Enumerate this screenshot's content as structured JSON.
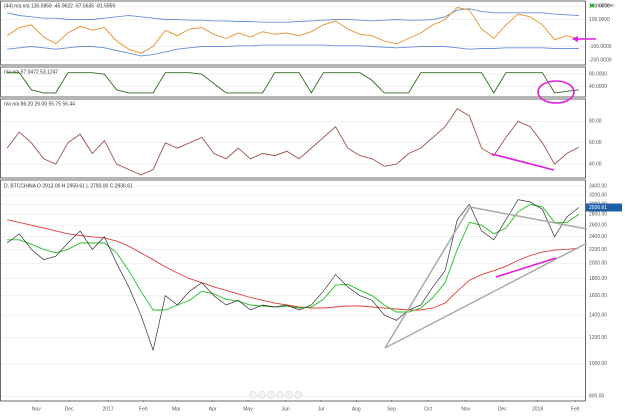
{
  "chart_data": [
    {
      "type": "line",
      "name": "cci",
      "header": "(44)  n/a  n/a  130.5959  -45.9622  -57.5635  -81.5959",
      "legend": "realtime",
      "ylim": [
        -230,
        230
      ],
      "yticks": [
        {
          "value": 200,
          "label": "200.0000"
        },
        {
          "value": 100,
          "label": "100.0000"
        },
        {
          "value": -100,
          "label": "-100.0000"
        },
        {
          "value": -200,
          "label": "-200.0000"
        }
      ],
      "series": [
        {
          "name": "upper",
          "color": "#6a8fd8",
          "values": [
            150,
            130,
            120,
            110,
            110,
            100,
            100,
            100,
            110,
            120,
            130,
            120,
            110,
            100,
            100,
            95,
            95,
            90,
            90,
            85,
            85,
            80,
            80,
            80,
            85,
            90,
            95,
            100,
            100,
            95,
            90,
            95,
            100,
            95,
            95,
            100,
            120,
            170,
            180,
            160,
            150,
            150,
            150,
            150,
            150,
            140,
            135,
            130
          ]
        },
        {
          "name": "lower",
          "color": "#6a8fd8",
          "values": [
            -120,
            -110,
            -100,
            -110,
            -120,
            -110,
            -100,
            -100,
            -110,
            -130,
            -150,
            -170,
            -160,
            -140,
            -120,
            -110,
            -100,
            -100,
            -100,
            -95,
            -95,
            -90,
            -90,
            -90,
            -90,
            -90,
            -90,
            -95,
            -95,
            -95,
            -100,
            -105,
            -110,
            -105,
            -100,
            -100,
            -100,
            -110,
            -120,
            -115,
            -115,
            -110,
            -110,
            -110,
            -110,
            -115,
            -115,
            -115
          ]
        },
        {
          "name": "cci",
          "color": "#e8902c",
          "values": [
            -20,
            40,
            60,
            -30,
            -80,
            0,
            50,
            20,
            40,
            -60,
            -120,
            -150,
            -100,
            20,
            -20,
            30,
            40,
            -10,
            -40,
            0,
            -30,
            10,
            -10,
            0,
            -20,
            10,
            60,
            90,
            30,
            -10,
            -20,
            -60,
            -80,
            -40,
            0,
            60,
            100,
            190,
            170,
            30,
            -40,
            60,
            140,
            120,
            60,
            -50,
            -20,
            -45
          ]
        }
      ]
    },
    {
      "type": "line",
      "name": "stoch",
      "header": "n/a  n/a  57.0472  53.1247",
      "ylim": [
        10,
        100
      ],
      "yticks": [
        {
          "value": 80,
          "label": "80.0000"
        },
        {
          "value": 40,
          "label": "40.0000"
        }
      ],
      "series": [
        {
          "name": "stoch",
          "color": "#2e6b1e",
          "values": [
            85,
            85,
            30,
            20,
            20,
            85,
            85,
            85,
            80,
            30,
            20,
            20,
            20,
            85,
            85,
            85,
            80,
            50,
            20,
            20,
            20,
            20,
            85,
            85,
            85,
            20,
            85,
            85,
            85,
            85,
            60,
            20,
            20,
            20,
            85,
            85,
            85,
            85,
            85,
            85,
            20,
            85,
            85,
            85,
            85,
            20,
            25,
            30
          ]
        }
      ]
    },
    {
      "type": "line",
      "name": "rsi",
      "header": "n/a  n/a  86.20  26.00  55.75  56.44",
      "ylim": [
        28,
        100
      ],
      "yticks": [
        {
          "value": 80,
          "label": "80.00"
        },
        {
          "value": 60,
          "label": "60.00"
        },
        {
          "value": 40,
          "label": "40.00"
        }
      ],
      "series": [
        {
          "name": "rsi",
          "color": "#a0524a",
          "values": [
            55,
            70,
            60,
            45,
            40,
            60,
            68,
            50,
            62,
            40,
            35,
            30,
            35,
            60,
            55,
            60,
            65,
            50,
            45,
            55,
            45,
            50,
            48,
            52,
            45,
            55,
            65,
            75,
            55,
            48,
            45,
            38,
            40,
            50,
            55,
            65,
            75,
            92,
            85,
            55,
            48,
            65,
            80,
            75,
            60,
            40,
            50,
            56
          ]
        }
      ]
    },
    {
      "type": "line",
      "name": "price",
      "header": "D, BTCCHINA   O 2913.00  H 2959.61  L 2790.00  C 2936.61",
      "log": true,
      "last_price": 2936.61,
      "ylim": [
        780,
        3500
      ],
      "yticks": [
        {
          "value": 3400,
          "label": "3400.00"
        },
        {
          "value": 3200,
          "label": "3200.00"
        },
        {
          "value": 3000,
          "label": "3000.00"
        },
        {
          "value": 2800,
          "label": "2800.00"
        },
        {
          "value": 2600,
          "label": "2600.00"
        },
        {
          "value": 2400,
          "label": "2400.00"
        },
        {
          "value": 2200,
          "label": "2200.00"
        },
        {
          "value": 2000,
          "label": "2000.00"
        },
        {
          "value": 1800,
          "label": "1800.00"
        },
        {
          "value": 1600,
          "label": "1600.00"
        },
        {
          "value": 1400,
          "label": "1400.00"
        },
        {
          "value": 1200,
          "label": "1200.00"
        },
        {
          "value": 1000,
          "label": "1000.00"
        },
        {
          "value": 800,
          "label": "800.00"
        }
      ],
      "xlim": [
        0,
        48
      ],
      "xticks": [
        {
          "value": 2.9,
          "label": "Nov"
        },
        {
          "value": 5.6,
          "label": "Dec"
        },
        {
          "value": 8.8,
          "label": "2017"
        },
        {
          "value": 11.7,
          "label": "Feb"
        },
        {
          "value": 14.4,
          "label": "Mar"
        },
        {
          "value": 17.4,
          "label": "Apr"
        },
        {
          "value": 20.3,
          "label": "May"
        },
        {
          "value": 23.4,
          "label": "Jun"
        },
        {
          "value": 26.3,
          "label": "Jul"
        },
        {
          "value": 29.2,
          "label": "Aug"
        },
        {
          "value": 32.1,
          "label": "Sep"
        },
        {
          "value": 35.1,
          "label": "Oct"
        },
        {
          "value": 38.2,
          "label": "Nov"
        },
        {
          "value": 41.2,
          "label": "Dec"
        },
        {
          "value": 44.1,
          "label": "2018"
        },
        {
          "value": 47.2,
          "label": "Feb"
        }
      ],
      "series": [
        {
          "name": "slow",
          "color": "#e0403c",
          "values": [
            2700,
            2650,
            2600,
            2550,
            2500,
            2450,
            2420,
            2400,
            2380,
            2330,
            2250,
            2150,
            2050,
            1950,
            1870,
            1800,
            1750,
            1700,
            1660,
            1620,
            1580,
            1550,
            1520,
            1500,
            1480,
            1470,
            1470,
            1480,
            1490,
            1490,
            1480,
            1470,
            1460,
            1450,
            1450,
            1470,
            1520,
            1650,
            1780,
            1850,
            1900,
            1960,
            2040,
            2110,
            2160,
            2190,
            2200,
            2220
          ]
        },
        {
          "name": "fast",
          "color": "#22c022",
          "values": [
            2350,
            2350,
            2280,
            2200,
            2150,
            2200,
            2300,
            2300,
            2300,
            2150,
            1900,
            1650,
            1450,
            1450,
            1500,
            1550,
            1650,
            1620,
            1560,
            1540,
            1500,
            1490,
            1480,
            1490,
            1470,
            1480,
            1560,
            1720,
            1730,
            1660,
            1600,
            1500,
            1430,
            1430,
            1470,
            1580,
            1750,
            2200,
            2650,
            2600,
            2450,
            2550,
            2850,
            3000,
            2950,
            2650,
            2650,
            2800
          ]
        },
        {
          "name": "BTCCHINA",
          "color": "#333333",
          "values": [
            2300,
            2450,
            2200,
            2050,
            2100,
            2300,
            2500,
            2200,
            2400,
            2000,
            1700,
            1400,
            1100,
            1600,
            1500,
            1650,
            1750,
            1600,
            1500,
            1550,
            1450,
            1500,
            1480,
            1500,
            1450,
            1500,
            1650,
            1850,
            1700,
            1600,
            1550,
            1400,
            1350,
            1450,
            1500,
            1700,
            1900,
            2700,
            3000,
            2500,
            2350,
            2700,
            3100,
            3050,
            2900,
            2400,
            2750,
            2936
          ]
        }
      ]
    }
  ]
}
